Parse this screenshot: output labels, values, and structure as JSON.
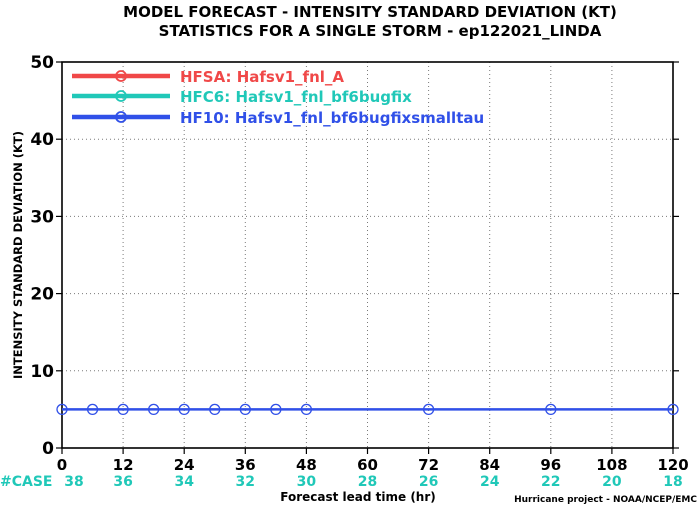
{
  "chart_data": {
    "type": "line",
    "title_line1": "MODEL FORECAST - INTENSITY STANDARD DEVIATION (KT)",
    "title_line2": "STATISTICS FOR A SINGLE STORM - ep122021_LINDA",
    "ylabel": "INTENSITY STANDARD DEVIATION (KT)",
    "xlabel": "Forecast lead time (hr)",
    "credit": "Hurricane project - NOAA/NCEP/EMC",
    "xlim": [
      0,
      120
    ],
    "ylim": [
      0,
      50
    ],
    "x_ticks": [
      0,
      12,
      24,
      36,
      48,
      60,
      72,
      84,
      96,
      108,
      120
    ],
    "y_ticks": [
      0,
      10,
      20,
      30,
      40,
      50
    ],
    "case_label": "#CASE",
    "case_counts": [
      38,
      36,
      34,
      32,
      30,
      28,
      26,
      24,
      22,
      20,
      18
    ],
    "legend_position": "top-left",
    "grid": true,
    "series": [
      {
        "name": "HFSA: Hafsv1_fnl_A",
        "color": "#f04848",
        "x": [],
        "y": []
      },
      {
        "name": "HFC6: Hafsv1_fnl_bf6bugfix",
        "color": "#20c8b8",
        "x": [],
        "y": []
      },
      {
        "name": "HF10: Hafsv1_fnl_bf6bugfixsmalltau",
        "color": "#3050e8",
        "x": [
          0,
          6,
          12,
          18,
          24,
          30,
          36,
          42,
          48,
          72,
          96,
          120
        ],
        "y": [
          5,
          5,
          5,
          5,
          5,
          5,
          5,
          5,
          5,
          5,
          5,
          5
        ]
      }
    ]
  }
}
